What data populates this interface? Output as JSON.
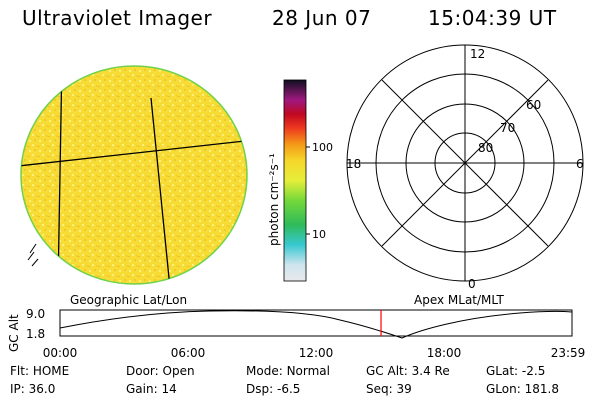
{
  "header": {
    "instrument": "Ultraviolet Imager",
    "date": "28 Jun 07",
    "time": "15:04:39 UT"
  },
  "colorbar": {
    "label": "photon cm⁻²s⁻¹",
    "tick_100": "100",
    "tick_10": "10"
  },
  "polar": {
    "lat_labels": [
      "80",
      "70",
      "60"
    ],
    "mlt_labels": {
      "top": "12",
      "left": "18",
      "right": "6",
      "bottom": "0"
    }
  },
  "timeline": {
    "ylabel": "GC Alt",
    "y_ticks": [
      "9.0",
      "1.8"
    ],
    "left_caption": "Geographic Lat/Lon",
    "right_caption": "Apex MLat/MLT",
    "x_ticks": [
      "00:00",
      "06:00",
      "12:00",
      "18:00",
      "23:59"
    ],
    "current_fraction": 0.627,
    "marker_color": "#ff0000"
  },
  "status": {
    "row1": [
      {
        "key": "Flt:",
        "value": "HOME"
      },
      {
        "key": "Door:",
        "value": "Open"
      },
      {
        "key": "Mode:",
        "value": "Normal"
      },
      {
        "key": "GC Alt:",
        "value": "3.4 Re"
      },
      {
        "key": "GLat:",
        "value": "-2.5"
      }
    ],
    "row2": [
      {
        "key": "IP:",
        "value": "36.0"
      },
      {
        "key": "Gain:",
        "value": "14"
      },
      {
        "key": "Dsp:",
        "value": "-6.5"
      },
      {
        "key": "Seq:",
        "value": "39"
      },
      {
        "key": "GLon:",
        "value": "181.8"
      }
    ]
  },
  "colors": {
    "disk_base": "#f7e23a",
    "disk_edge": "#6fd24a",
    "grid": "#000000"
  }
}
